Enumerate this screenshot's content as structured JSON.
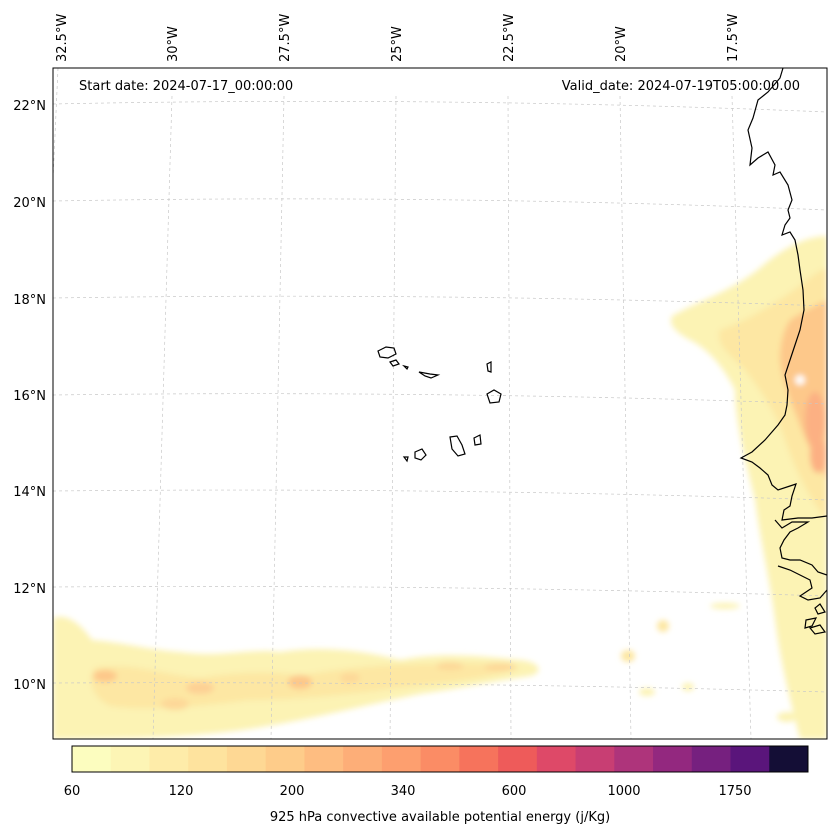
{
  "header": {
    "start_date": "Start date: 2024-07-17_00:00:00",
    "valid_date": "Valid_date: 2024-07-19T05:00:00.00"
  },
  "lon_labels": [
    "32.5°W",
    "30°W",
    "27.5°W",
    "25°W",
    "22.5°W",
    "20°W",
    "17.5°W"
  ],
  "lat_labels": [
    "22°N",
    "20°N",
    "18°N",
    "16°N",
    "14°N",
    "12°N",
    "10°N"
  ],
  "colorbar": {
    "label": "925 hPa convective available potential energy (j/Kg)",
    "tick_labels": [
      "60",
      "120",
      "200",
      "340",
      "600",
      "1000",
      "1750"
    ],
    "colors": [
      "#fcfdbf",
      "#fdf5b5",
      "#feeca9",
      "#fee39e",
      "#fed894",
      "#fecc8a",
      "#febd81",
      "#fdae78",
      "#fd9f6f",
      "#fb8c65",
      "#f6735c",
      "#ee5b5a",
      "#de4968",
      "#c83e73",
      "#ae347b",
      "#93287f",
      "#76207f",
      "#5a157b",
      "#140e36"
    ]
  },
  "colors": {
    "coastline": "#000000",
    "gridline": "#c8c8c8",
    "cape_low": "#fcf3b4",
    "cape_mid": "#fdd898",
    "cape_high": "#fcb083"
  }
}
